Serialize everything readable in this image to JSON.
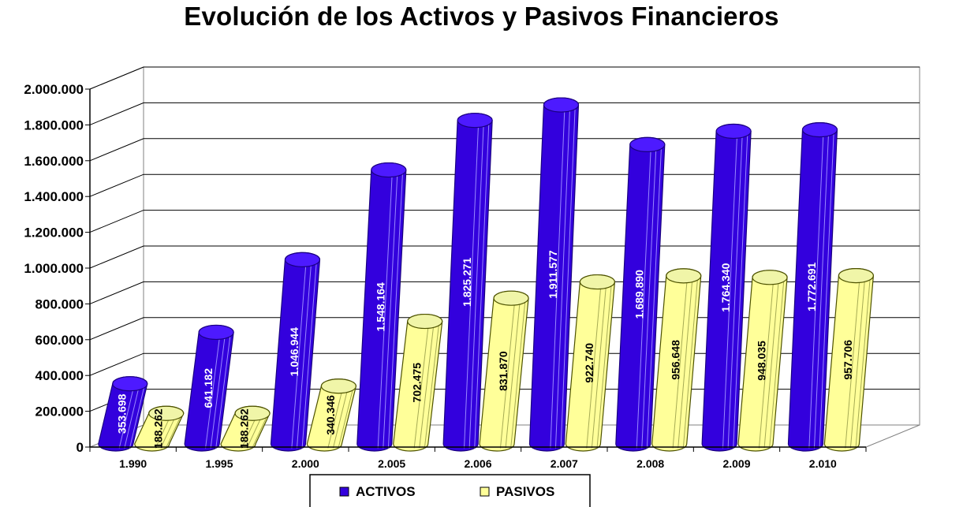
{
  "chart_data": {
    "type": "bar",
    "title": "Evolución de los Activos y Pasivos Financieros",
    "categories": [
      "1.990",
      "1.995",
      "2.000",
      "2.005",
      "2.006",
      "2.007",
      "2.008",
      "2.009",
      "2.010"
    ],
    "series": [
      {
        "name": "ACTIVOS",
        "color": "#3300dd",
        "values": [
          353698,
          641182,
          1046944,
          1548164,
          1825271,
          1911577,
          1689890,
          1764340,
          1772691
        ],
        "labels": [
          "353.698",
          "641.182",
          "1.046.944",
          "1.548.164",
          "1.825.271",
          "1.911.577",
          "1.689.890",
          "1.764.340",
          "1.772.691"
        ]
      },
      {
        "name": "PASIVOS",
        "color": "#ffff99",
        "values": [
          188262,
          188262,
          340346,
          702475,
          831870,
          922740,
          956648,
          948035,
          957706
        ],
        "labels": [
          "188.262",
          "188.262",
          "340.346",
          "702.475",
          "831.870",
          "922.740",
          "956.648",
          "948.035",
          "957.706"
        ]
      }
    ],
    "ylim": [
      0,
      2000000
    ],
    "yticks": [
      0,
      200000,
      400000,
      600000,
      800000,
      1000000,
      1200000,
      1400000,
      1600000,
      1800000,
      2000000
    ],
    "ytick_labels": [
      "0",
      "200.000",
      "400.000",
      "600.000",
      "800.000",
      "1.000.000",
      "1.200.000",
      "1.400.000",
      "1.600.000",
      "1.800.000",
      "2.000.000"
    ],
    "grid": true,
    "legend": "bottom",
    "xlabel": "",
    "ylabel": ""
  }
}
